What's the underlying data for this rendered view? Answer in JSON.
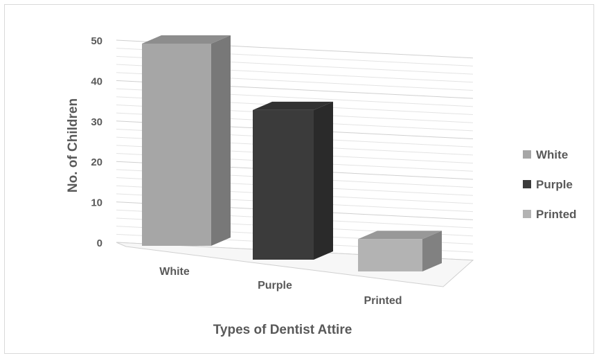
{
  "chart_data": {
    "type": "bar",
    "title": "",
    "xlabel": "Types of Dentist Attire",
    "ylabel": "No. of Children",
    "categories": [
      "White",
      "Purple",
      "Printed"
    ],
    "values": [
      50,
      37,
      8
    ],
    "ylim": [
      0,
      50
    ],
    "yticks": [
      0,
      10,
      20,
      30,
      40,
      50
    ],
    "grid": true,
    "legend": {
      "position": "right",
      "entries": [
        {
          "label": "White",
          "color": "#a6a6a6"
        },
        {
          "label": "Purple",
          "color": "#3b3b3b"
        },
        {
          "label": "Printed",
          "color": "#b3b3b3"
        }
      ]
    },
    "colors": [
      "#a6a6a6",
      "#3b3b3b",
      "#b3b3b3"
    ]
  }
}
